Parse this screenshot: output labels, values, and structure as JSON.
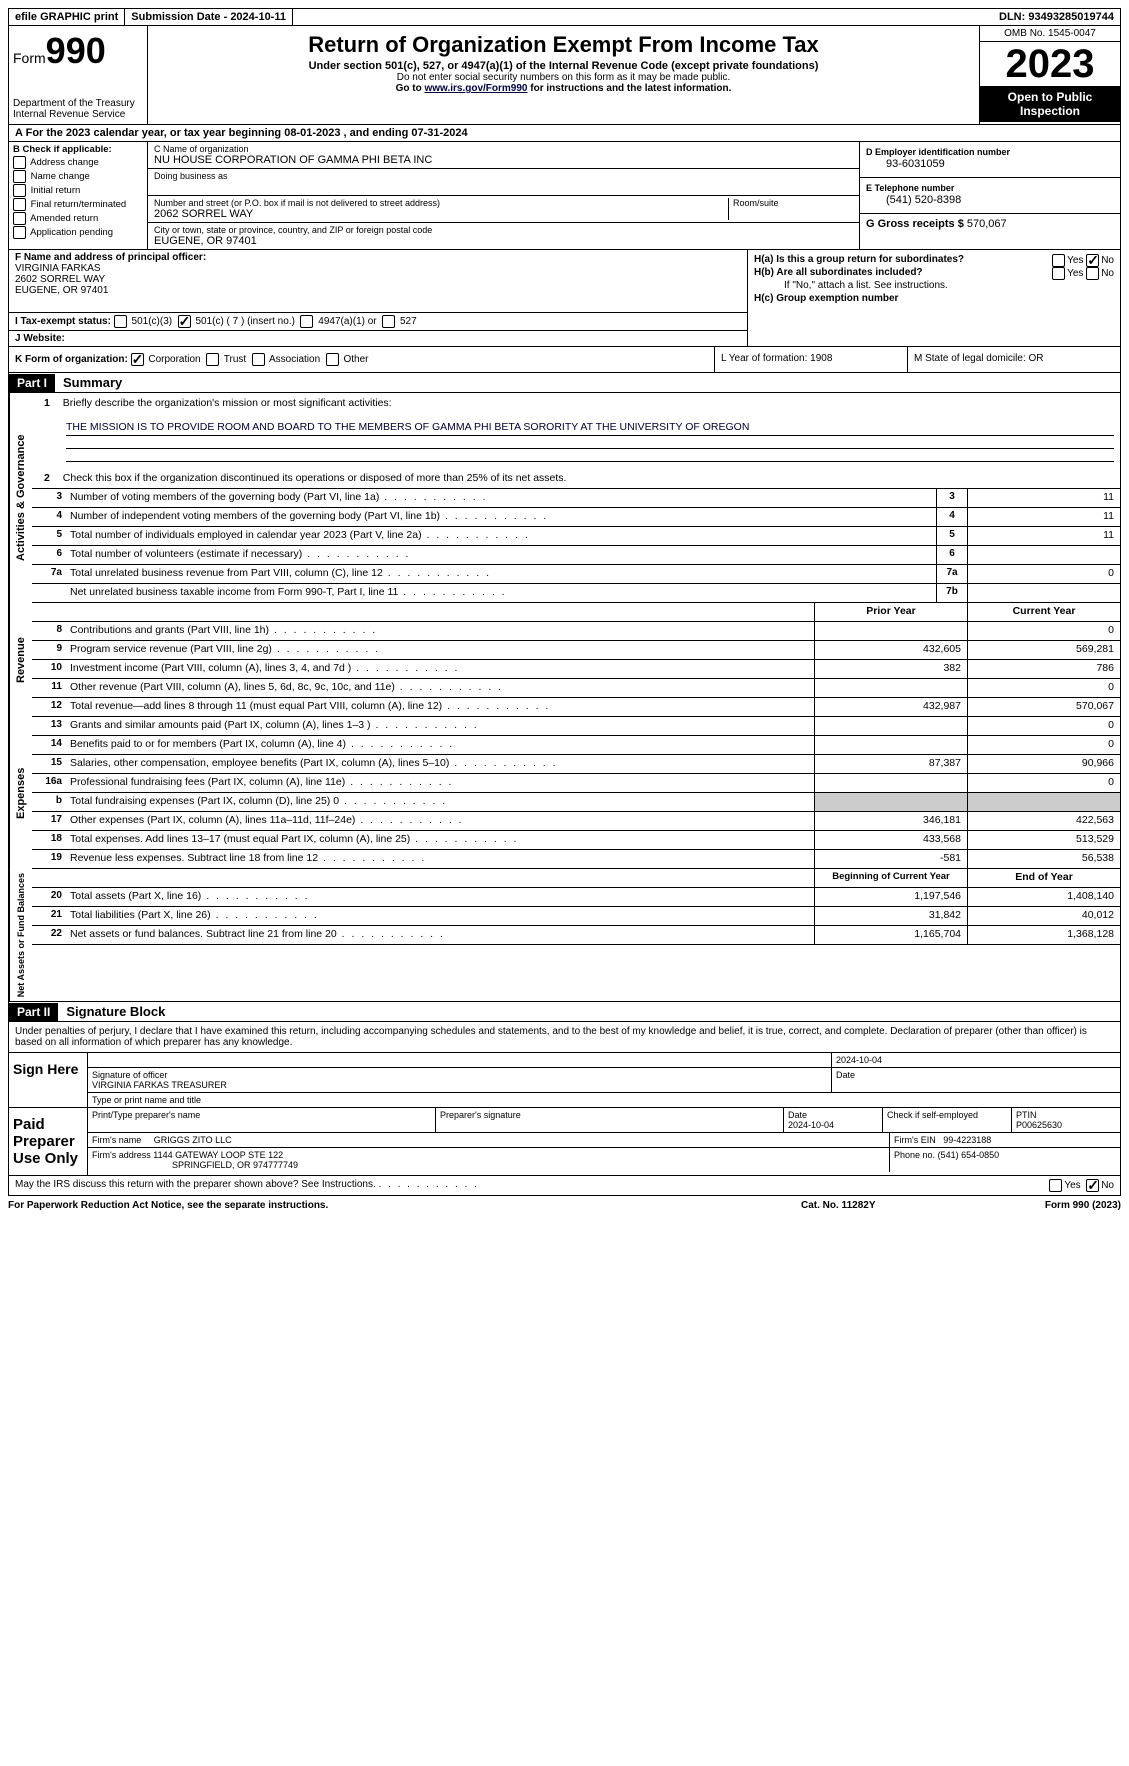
{
  "topbar": {
    "efile": "efile GRAPHIC print",
    "submission": "Submission Date - 2024-10-11",
    "dln": "DLN: 93493285019744"
  },
  "header": {
    "form_label": "Form",
    "form_number": "990",
    "dept": "Department of the Treasury",
    "irs": "Internal Revenue Service",
    "title": "Return of Organization Exempt From Income Tax",
    "subtitle": "Under section 501(c), 527, or 4947(a)(1) of the Internal Revenue Code (except private foundations)",
    "note1": "Do not enter social security numbers on this form as it may be made public.",
    "note2_pre": "Go to ",
    "note2_link": "www.irs.gov/Form990",
    "note2_post": " for instructions and the latest information.",
    "omb": "OMB No. 1545-0047",
    "year": "2023",
    "open": "Open to Public Inspection"
  },
  "taxyear": "For the 2023 calendar year, or tax year beginning 08-01-2023   , and ending 07-31-2024",
  "sectionB": {
    "label": "B Check if applicable:",
    "items": [
      "Address change",
      "Name change",
      "Initial return",
      "Final return/terminated",
      "Amended return",
      "Application pending"
    ]
  },
  "sectionC": {
    "name_lbl": "C Name of organization",
    "name": "NU HOUSE CORPORATION OF GAMMA PHI BETA INC",
    "dba_lbl": "Doing business as",
    "street_lbl": "Number and street (or P.O. box if mail is not delivered to street address)",
    "room_lbl": "Room/suite",
    "street": "2062 SORREL WAY",
    "city_lbl": "City or town, state or province, country, and ZIP or foreign postal code",
    "city": "EUGENE, OR  97401"
  },
  "sectionD": {
    "lbl": "D Employer identification number",
    "val": "93-6031059"
  },
  "sectionE": {
    "lbl": "E Telephone number",
    "val": "(541) 520-8398"
  },
  "sectionG": {
    "lbl": "G Gross receipts $",
    "val": "570,067"
  },
  "sectionF": {
    "lbl": "F  Name and address of principal officer:",
    "name": "VIRGINIA FARKAS",
    "street": "2602 SORREL WAY",
    "city": "EUGENE, OR  97401"
  },
  "sectionH": {
    "ha": "H(a)  Is this a group return for subordinates?",
    "hb": "H(b)  Are all subordinates included?",
    "hb_note": "If \"No,\" attach a list. See instructions.",
    "hc": "H(c)  Group exemption number"
  },
  "sectionI": {
    "lbl": "I   Tax-exempt status:",
    "opts": [
      "501(c)(3)",
      "501(c) ( 7 ) (insert no.)",
      "4947(a)(1) or",
      "527"
    ]
  },
  "sectionJ": {
    "lbl": "J   Website:"
  },
  "sectionK": {
    "lbl": "K Form of organization:",
    "opts": [
      "Corporation",
      "Trust",
      "Association",
      "Other"
    ],
    "L": "L Year of formation: 1908",
    "M": "M State of legal domicile: OR"
  },
  "part1": {
    "label": "Part I",
    "title": "Summary",
    "line1_lbl": "Briefly describe the organization's mission or most significant activities:",
    "line1_num": "1",
    "mission": "THE MISSION IS TO PROVIDE ROOM AND BOARD TO THE MEMBERS OF GAMMA PHI BETA SORORITY AT THE UNIVERSITY OF OREGON",
    "line2": "Check this box      if the organization discontinued its operations or disposed of more than 25% of its net assets.",
    "sections": {
      "gov": "Activities & Governance",
      "rev": "Revenue",
      "exp": "Expenses",
      "net": "Net Assets or Fund Balances"
    },
    "gov_rows": [
      {
        "n": "3",
        "d": "Number of voting members of the governing body (Part VI, line 1a)",
        "box": "3",
        "v": "11"
      },
      {
        "n": "4",
        "d": "Number of independent voting members of the governing body (Part VI, line 1b)",
        "box": "4",
        "v": "11"
      },
      {
        "n": "5",
        "d": "Total number of individuals employed in calendar year 2023 (Part V, line 2a)",
        "box": "5",
        "v": "11"
      },
      {
        "n": "6",
        "d": "Total number of volunteers (estimate if necessary)",
        "box": "6",
        "v": ""
      },
      {
        "n": "7a",
        "d": "Total unrelated business revenue from Part VIII, column (C), line 12",
        "box": "7a",
        "v": "0"
      },
      {
        "n": "",
        "d": "Net unrelated business taxable income from Form 990-T, Part I, line 11",
        "box": "7b",
        "v": ""
      }
    ],
    "col_headers": {
      "prior": "Prior Year",
      "current": "Current Year",
      "boy": "Beginning of Current Year",
      "eoy": "End of Year"
    },
    "rev_rows": [
      {
        "n": "8",
        "d": "Contributions and grants (Part VIII, line 1h)",
        "p": "",
        "c": "0"
      },
      {
        "n": "9",
        "d": "Program service revenue (Part VIII, line 2g)",
        "p": "432,605",
        "c": "569,281"
      },
      {
        "n": "10",
        "d": "Investment income (Part VIII, column (A), lines 3, 4, and 7d )",
        "p": "382",
        "c": "786"
      },
      {
        "n": "11",
        "d": "Other revenue (Part VIII, column (A), lines 5, 6d, 8c, 9c, 10c, and 11e)",
        "p": "",
        "c": "0"
      },
      {
        "n": "12",
        "d": "Total revenue—add lines 8 through 11 (must equal Part VIII, column (A), line 12)",
        "p": "432,987",
        "c": "570,067"
      }
    ],
    "exp_rows": [
      {
        "n": "13",
        "d": "Grants and similar amounts paid (Part IX, column (A), lines 1–3 )",
        "p": "",
        "c": "0"
      },
      {
        "n": "14",
        "d": "Benefits paid to or for members (Part IX, column (A), line 4)",
        "p": "",
        "c": "0"
      },
      {
        "n": "15",
        "d": "Salaries, other compensation, employee benefits (Part IX, column (A), lines 5–10)",
        "p": "87,387",
        "c": "90,966"
      },
      {
        "n": "16a",
        "d": "Professional fundraising fees (Part IX, column (A), line 11e)",
        "p": "",
        "c": "0"
      },
      {
        "n": "b",
        "d": "Total fundraising expenses (Part IX, column (D), line 25) 0",
        "p": "shade",
        "c": "shade"
      },
      {
        "n": "17",
        "d": "Other expenses (Part IX, column (A), lines 11a–11d, 11f–24e)",
        "p": "346,181",
        "c": "422,563"
      },
      {
        "n": "18",
        "d": "Total expenses. Add lines 13–17 (must equal Part IX, column (A), line 25)",
        "p": "433,568",
        "c": "513,529"
      },
      {
        "n": "19",
        "d": "Revenue less expenses. Subtract line 18 from line 12",
        "p": "-581",
        "c": "56,538"
      }
    ],
    "net_rows": [
      {
        "n": "20",
        "d": "Total assets (Part X, line 16)",
        "p": "1,197,546",
        "c": "1,408,140"
      },
      {
        "n": "21",
        "d": "Total liabilities (Part X, line 26)",
        "p": "31,842",
        "c": "40,012"
      },
      {
        "n": "22",
        "d": "Net assets or fund balances. Subtract line 21 from line 20",
        "p": "1,165,704",
        "c": "1,368,128"
      }
    ]
  },
  "part2": {
    "label": "Part II",
    "title": "Signature Block",
    "penalty": "Under penalties of perjury, I declare that I have examined this return, including accompanying schedules and statements, and to the best of my knowledge and belief, it is true, correct, and complete. Declaration of preparer (other than officer) is based on all information of which preparer has any knowledge.",
    "sign_here": "Sign Here",
    "sig_date": "2024-10-04",
    "sig_lbl": "Signature of officer",
    "officer": "VIRGINIA FARKAS  TREASURER",
    "type_lbl": "Type or print name and title",
    "date_lbl": "Date",
    "paid": "Paid Preparer Use Only",
    "prep_name_lbl": "Print/Type preparer's name",
    "prep_sig_lbl": "Preparer's signature",
    "prep_date_lbl": "Date",
    "prep_date": "2024-10-04",
    "self_emp": "Check       if self-employed",
    "ptin_lbl": "PTIN",
    "ptin": "P00625630",
    "firm_name_lbl": "Firm's name",
    "firm_name": "GRIGGS ZITO LLC",
    "firm_ein_lbl": "Firm's EIN",
    "firm_ein": "99-4223188",
    "firm_addr_lbl": "Firm's address",
    "firm_addr1": "1144 GATEWAY LOOP STE 122",
    "firm_addr2": "SPRINGFIELD, OR  974777749",
    "phone_lbl": "Phone no.",
    "phone": "(541) 654-0850",
    "discuss": "May the IRS discuss this return with the preparer shown above? See Instructions.",
    "yes": "Yes",
    "no": "No"
  },
  "footer": {
    "paperwork": "For Paperwork Reduction Act Notice, see the separate instructions.",
    "cat": "Cat. No. 11282Y",
    "form": "Form 990 (2023)"
  }
}
